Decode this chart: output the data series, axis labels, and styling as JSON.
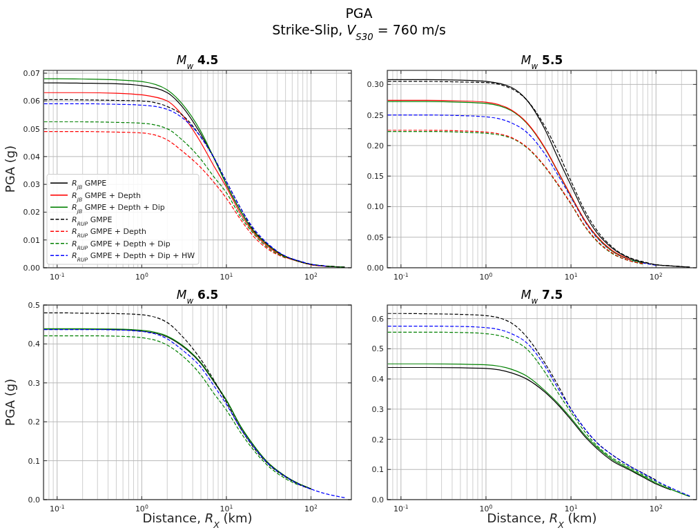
{
  "chart_data": [
    {
      "type": "line",
      "title": "M$_{w}$ 4.5",
      "ylabel": "PGA (g)",
      "annotations": [
        "PGA",
        "Strike-Slip, V$_{S30}$ = 760 m/s"
      ],
      "log": "x",
      "grid": true,
      "legend": "lower left",
      "x": [
        0.07,
        0.1,
        0.2,
        0.5,
        1,
        2,
        3,
        5,
        7,
        10,
        15,
        20,
        30,
        50,
        70,
        100,
        150,
        250
      ],
      "xlim": [
        0.069,
        300
      ],
      "xticks": [
        {
          "value": 0.1,
          "label": "10$^{-1}$"
        },
        {
          "value": 1,
          "label": "10$^{0}$"
        },
        {
          "value": 10,
          "label": "10$^{1}$"
        },
        {
          "value": 100,
          "label": "10$^{2}$"
        }
      ],
      "ylim": [
        0,
        0.071
      ],
      "yticks": [
        {
          "value": 0,
          "label": "0.00"
        },
        {
          "value": 0.01,
          "label": "0.01"
        },
        {
          "value": 0.02,
          "label": "0.02"
        },
        {
          "value": 0.03,
          "label": "0.03"
        },
        {
          "value": 0.04,
          "label": "0.04"
        },
        {
          "value": 0.05,
          "label": "0.05"
        },
        {
          "value": 0.06,
          "label": "0.06"
        },
        {
          "value": 0.07,
          "label": "0.07"
        }
      ],
      "series": [
        {
          "name": "R$_{JB}$ GMPE",
          "color": "#000000",
          "line_style": "solid",
          "values": [
            0.0665,
            0.0665,
            0.0664,
            0.0662,
            0.0655,
            0.063,
            0.058,
            0.048,
            0.04,
            0.03,
            0.02,
            0.014,
            0.0085,
            0.004,
            0.0024,
            0.0012,
            0.0006,
            0.0002
          ]
        },
        {
          "name": "R$_{JB}$ GMPE + Depth",
          "color": "#ff0000",
          "line_style": "solid",
          "values": [
            0.063,
            0.063,
            0.063,
            0.0628,
            0.0622,
            0.06,
            0.055,
            0.045,
            0.037,
            0.029,
            0.019,
            0.0135,
            0.008,
            0.0038,
            0.0023,
            0.0011,
            0.0005,
            null
          ]
        },
        {
          "name": "R$_{JB}$ GMPE + Depth + Dip",
          "color": "#008000",
          "line_style": "solid",
          "values": [
            0.068,
            0.068,
            0.0679,
            0.0676,
            0.067,
            0.064,
            0.059,
            0.049,
            0.04,
            0.03,
            0.02,
            0.014,
            0.0085,
            0.004,
            0.0024,
            0.0012,
            0.0006,
            0.0002
          ]
        },
        {
          "name": "R$_{RUP}$ GMPE",
          "color": "#000000",
          "line_style": "dashed",
          "values": [
            0.0605,
            0.0605,
            0.0604,
            0.0602,
            0.06,
            0.058,
            0.055,
            0.047,
            0.04,
            0.031,
            0.021,
            0.0145,
            0.0088,
            0.0041,
            0.0025,
            0.0012,
            0.0006,
            0.0002
          ]
        },
        {
          "name": "R$_{RUP}$ GMPE + Depth",
          "color": "#ff0000",
          "line_style": "dashed",
          "values": [
            0.049,
            0.049,
            0.049,
            0.0488,
            0.0485,
            0.046,
            0.042,
            0.036,
            0.031,
            0.025,
            0.017,
            0.012,
            0.007,
            0.0035,
            null,
            null,
            null,
            null
          ]
        },
        {
          "name": "R$_{RUP}$ GMPE + Depth + Dip",
          "color": "#008000",
          "line_style": "dashed",
          "values": [
            0.0525,
            0.0525,
            0.0525,
            0.0523,
            0.052,
            0.05,
            0.046,
            0.039,
            0.033,
            0.027,
            0.018,
            0.013,
            0.0075,
            0.0037,
            null,
            null,
            null,
            null
          ]
        },
        {
          "name": "R$_{RUP}$ GMPE + Depth + Dip + HW",
          "color": "#0000ff",
          "line_style": "dashed",
          "values": [
            0.059,
            0.059,
            0.059,
            0.0588,
            0.0585,
            0.057,
            0.054,
            0.047,
            0.04,
            0.031,
            0.021,
            0.015,
            0.009,
            0.0042,
            0.0026,
            0.0013,
            0.0006,
            null
          ]
        }
      ]
    },
    {
      "type": "line",
      "title": "M$_{w}$ 5.5",
      "log": "x",
      "grid": true,
      "x": [
        0.07,
        0.1,
        0.2,
        0.5,
        1,
        2,
        3,
        5,
        7,
        10,
        15,
        20,
        30,
        50,
        70,
        100,
        150,
        250
      ],
      "xlim": [
        0.069,
        300
      ],
      "xticks": [
        {
          "value": 0.1,
          "label": "10$^{-1}$"
        },
        {
          "value": 1,
          "label": "10$^{0}$"
        },
        {
          "value": 10,
          "label": "10$^{1}$"
        },
        {
          "value": 100,
          "label": "10$^{2}$"
        }
      ],
      "ylim": [
        0,
        0.323
      ],
      "yticks": [
        {
          "value": 0,
          "label": "0.00"
        },
        {
          "value": 0.05,
          "label": "0.05"
        },
        {
          "value": 0.1,
          "label": "0.10"
        },
        {
          "value": 0.15,
          "label": "0.15"
        },
        {
          "value": 0.2,
          "label": "0.20"
        },
        {
          "value": 0.25,
          "label": "0.25"
        },
        {
          "value": 0.3,
          "label": "0.30"
        }
      ],
      "series": [
        {
          "color": "#0000ff",
          "line_style": "dashed",
          "values": [
            0.25,
            0.25,
            0.25,
            0.249,
            0.247,
            0.237,
            0.222,
            0.185,
            0.152,
            0.115,
            0.073,
            0.05,
            0.028,
            0.013,
            0.008,
            0.004,
            null,
            null
          ]
        },
        {
          "color": "#008000",
          "line_style": "solid",
          "values": [
            0.272,
            0.272,
            0.272,
            0.271,
            0.269,
            0.257,
            0.237,
            0.194,
            0.157,
            0.117,
            0.074,
            0.051,
            0.028,
            0.013,
            0.008,
            null,
            null,
            null
          ]
        },
        {
          "color": "#ff0000",
          "line_style": "solid",
          "values": [
            0.274,
            0.274,
            0.274,
            0.273,
            0.271,
            0.258,
            0.238,
            0.195,
            0.158,
            0.118,
            0.075,
            0.052,
            0.029,
            0.013,
            null,
            null,
            null,
            null
          ]
        },
        {
          "color": "#008000",
          "line_style": "dashed",
          "values": [
            0.223,
            0.223,
            0.223,
            0.222,
            0.22,
            0.212,
            0.197,
            0.164,
            0.136,
            0.104,
            0.065,
            0.044,
            0.024,
            0.011,
            0.006,
            null,
            null,
            null
          ]
        },
        {
          "color": "#ff0000",
          "line_style": "dashed",
          "values": [
            0.225,
            0.225,
            0.225,
            0.224,
            0.222,
            0.213,
            0.198,
            0.165,
            0.137,
            0.105,
            0.066,
            0.045,
            0.025,
            0.011,
            0.007,
            null,
            null,
            null
          ]
        },
        {
          "color": "#000000",
          "line_style": "solid",
          "values": [
            0.308,
            0.308,
            0.308,
            0.307,
            0.305,
            0.295,
            0.275,
            0.225,
            0.18,
            0.135,
            0.085,
            0.058,
            0.033,
            0.015,
            0.009,
            0.005,
            0.003,
            0.001
          ]
        },
        {
          "color": "#000000",
          "line_style": "dashed",
          "values": [
            0.305,
            0.305,
            0.305,
            0.304,
            0.303,
            0.293,
            0.275,
            0.23,
            0.19,
            0.142,
            0.09,
            0.062,
            0.035,
            0.016,
            0.01,
            0.005,
            0.003,
            0.001
          ]
        }
      ]
    },
    {
      "type": "line",
      "title": "M$_{w}$ 6.5",
      "xlabel": "Distance, R$_{X}$ (km)",
      "ylabel": "PGA (g)",
      "log": "x",
      "grid": true,
      "x": [
        0.07,
        0.1,
        0.2,
        0.5,
        1,
        2,
        3,
        5,
        7,
        10,
        15,
        20,
        30,
        50,
        70,
        100,
        150,
        250
      ],
      "xlim": [
        0.069,
        300
      ],
      "xticks": [
        {
          "value": 0.1,
          "label": "10$^{-1}$"
        },
        {
          "value": 1,
          "label": "10$^{0}$"
        },
        {
          "value": 10,
          "label": "10$^{1}$"
        },
        {
          "value": 100,
          "label": "10$^{2}$"
        }
      ],
      "ylim": [
        0,
        0.5
      ],
      "yticks": [
        {
          "value": 0,
          "label": "0.0"
        },
        0.1,
        0.2,
        0.3,
        0.4,
        0.5
      ],
      "series": [
        {
          "color": "#000000",
          "line_style": "solid",
          "values": [
            0.438,
            0.438,
            0.438,
            0.437,
            0.433,
            0.418,
            0.395,
            0.35,
            0.305,
            0.255,
            0.185,
            0.145,
            0.098,
            0.06,
            0.042,
            0.028,
            null,
            null
          ]
        },
        {
          "color": "#008000",
          "line_style": "solid",
          "values": [
            0.439,
            0.439,
            0.439,
            0.438,
            0.435,
            0.42,
            0.397,
            0.352,
            0.307,
            0.256,
            0.186,
            0.146,
            0.098,
            0.06,
            0.042,
            0.028,
            null,
            null
          ]
        },
        {
          "color": "#000000",
          "line_style": "dashed",
          "values": [
            0.48,
            0.48,
            0.479,
            0.478,
            0.475,
            0.455,
            0.42,
            0.36,
            0.31,
            0.25,
            0.18,
            0.14,
            0.095,
            0.058,
            0.04,
            0.027,
            null,
            null
          ]
        },
        {
          "color": "#008000",
          "line_style": "dashed",
          "values": [
            0.421,
            0.421,
            0.421,
            0.42,
            0.416,
            0.397,
            0.37,
            0.32,
            0.275,
            0.23,
            0.17,
            0.133,
            0.09,
            0.054,
            0.038,
            null,
            null,
            null
          ]
        },
        {
          "color": "#0000ff",
          "line_style": "dashed",
          "values": [
            0.437,
            0.437,
            0.437,
            0.436,
            0.432,
            0.413,
            0.385,
            0.34,
            0.295,
            0.245,
            0.18,
            0.142,
            0.096,
            0.059,
            0.041,
            0.027,
            0.015,
            0.005
          ]
        }
      ]
    },
    {
      "type": "line",
      "title": "M$_{w}$ 7.5",
      "xlabel": "Distance, R$_{X}$ (km)",
      "log": "x",
      "grid": true,
      "x": [
        0.07,
        0.1,
        0.2,
        0.5,
        1,
        2,
        3,
        5,
        7,
        10,
        15,
        20,
        30,
        50,
        70,
        100,
        150,
        250
      ],
      "xlim": [
        0.069,
        300
      ],
      "xticks": [
        {
          "value": 0.1,
          "label": "10$^{-1}$"
        },
        {
          "value": 1,
          "label": "10$^{0}$"
        },
        {
          "value": 10,
          "label": "10$^{1}$"
        },
        {
          "value": 100,
          "label": "10$^{2}$"
        }
      ],
      "ylim": [
        0,
        0.645
      ],
      "yticks": [
        {
          "value": 0,
          "label": "0.0"
        },
        0.1,
        0.2,
        0.3,
        0.4,
        0.5,
        0.6
      ],
      "series": [
        {
          "color": "#000000",
          "line_style": "solid",
          "values": [
            0.438,
            0.438,
            0.438,
            0.437,
            0.435,
            0.42,
            0.4,
            0.355,
            0.315,
            0.265,
            0.205,
            0.17,
            0.13,
            0.097,
            0.075,
            0.052,
            0.032,
            null
          ]
        },
        {
          "color": "#008000",
          "line_style": "solid",
          "values": [
            0.45,
            0.45,
            0.45,
            0.449,
            0.447,
            0.432,
            0.41,
            0.36,
            0.32,
            0.27,
            0.21,
            0.175,
            0.135,
            0.1,
            0.078,
            0.055,
            0.034,
            0.01
          ]
        },
        {
          "color": "#000000",
          "line_style": "dashed",
          "values": [
            0.617,
            0.617,
            0.616,
            0.614,
            0.61,
            0.585,
            0.54,
            0.45,
            0.38,
            0.3,
            0.23,
            0.19,
            0.15,
            0.11,
            0.088,
            0.065,
            null,
            null
          ]
        },
        {
          "color": "#008000",
          "line_style": "dashed",
          "values": [
            0.555,
            0.555,
            0.555,
            0.554,
            0.55,
            0.53,
            0.5,
            0.42,
            0.355,
            0.29,
            0.22,
            0.18,
            0.14,
            0.105,
            0.082,
            0.06,
            0.037,
            null
          ]
        },
        {
          "color": "#0000ff",
          "line_style": "dashed",
          "values": [
            0.575,
            0.575,
            0.575,
            0.574,
            0.57,
            0.55,
            0.52,
            0.44,
            0.37,
            0.3,
            0.23,
            0.19,
            0.15,
            0.11,
            0.087,
            0.063,
            0.039,
            0.012
          ]
        }
      ]
    }
  ]
}
